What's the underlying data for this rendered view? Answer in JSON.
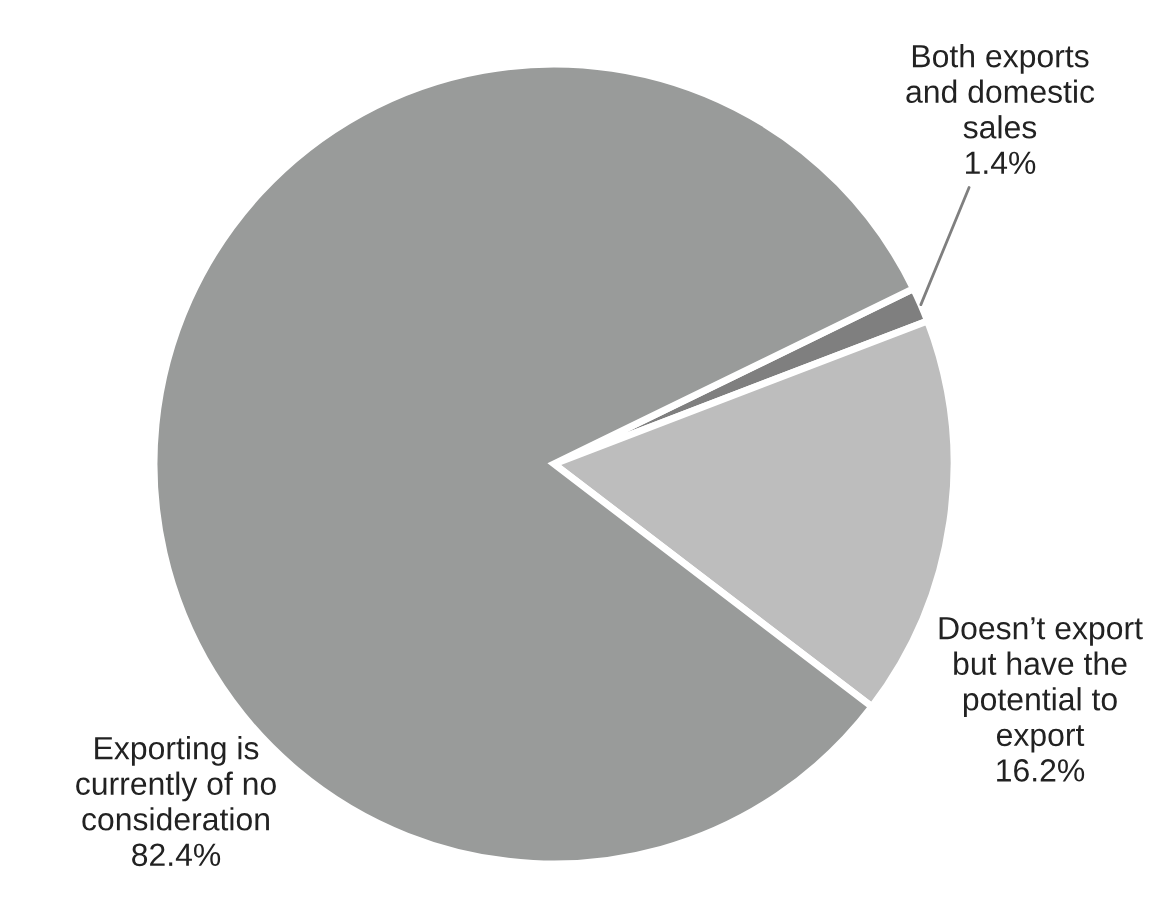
{
  "chart_data": {
    "type": "pie",
    "categories": [
      "Both exports\nand domestic\nsales",
      "Doesn’t export\nbut have the\npotential to\nexport",
      "Exporting is\ncurrently of no\nconsideration"
    ],
    "values": [
      1.4,
      16.2,
      82.4
    ],
    "value_labels": [
      "1.4%",
      "16.2%",
      "82.4%"
    ],
    "colors": [
      "#7f7f7f",
      "#bdbdbd",
      "#999b9a"
    ]
  }
}
